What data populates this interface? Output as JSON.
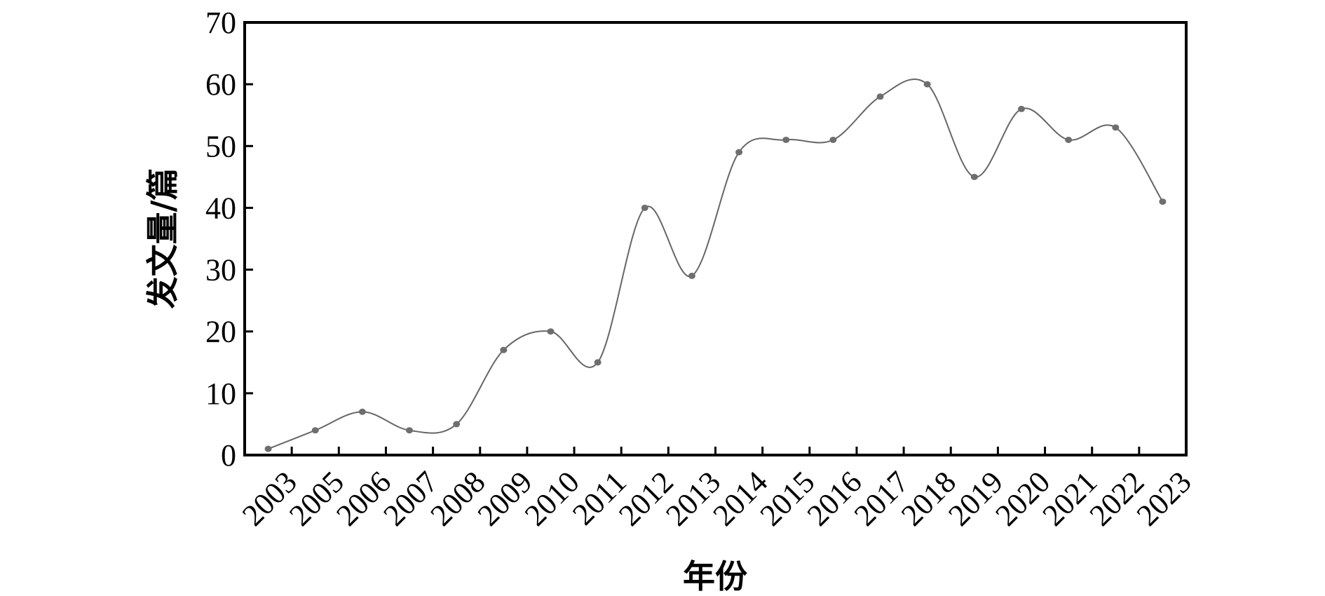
{
  "chart_data": {
    "type": "line",
    "title": "",
    "xlabel": "年份",
    "ylabel": "发文量/篇",
    "categories": [
      "2003",
      "2005",
      "2006",
      "2007",
      "2008",
      "2009",
      "2010",
      "2011",
      "2012",
      "2013",
      "2014",
      "2015",
      "2016",
      "2017",
      "2018",
      "2019",
      "2020",
      "2021",
      "2022",
      "2023"
    ],
    "series": [
      {
        "values": [
          1,
          4,
          7,
          4,
          5,
          17,
          20,
          15,
          40,
          29,
          49,
          51,
          51,
          58,
          60,
          45,
          56,
          51,
          53,
          41
        ]
      }
    ],
    "ylim": [
      0,
      70
    ],
    "yticks": [
      0,
      10,
      20,
      30,
      40,
      50,
      60,
      70
    ],
    "grid": false,
    "smooth": true,
    "line_color": "#666666",
    "marker_color": "#6e6e6e"
  }
}
